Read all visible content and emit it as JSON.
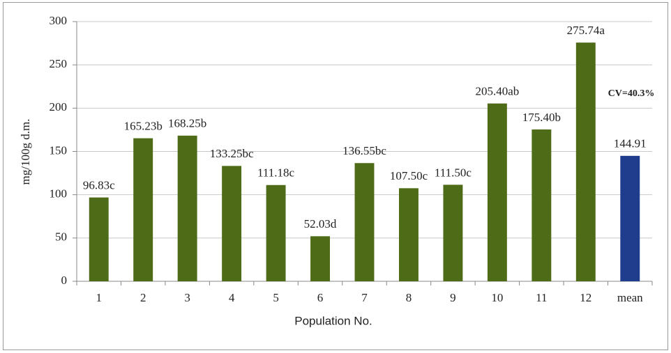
{
  "chart_data": {
    "type": "bar",
    "x_label": "Population No.",
    "y_label": "mg/100g d.m.",
    "annotation": "CV=40.3%",
    "categories": [
      "1",
      "2",
      "3",
      "4",
      "5",
      "6",
      "7",
      "8",
      "9",
      "10",
      "11",
      "12",
      "mean"
    ],
    "values": [
      96.83,
      165.23,
      168.25,
      133.25,
      111.18,
      52.03,
      136.55,
      107.5,
      111.5,
      205.4,
      175.4,
      275.74,
      144.91
    ],
    "value_labels": [
      "96.83c",
      "165.23b",
      "168.25b",
      "133.25bc",
      "111.18c",
      "52.03d",
      "136.55bc",
      "107.50c",
      "111.50c",
      "205.40ab",
      "175.40b",
      "275.74a",
      "144.91"
    ],
    "colors": [
      "#4e6b18",
      "#4e6b18",
      "#4e6b18",
      "#4e6b18",
      "#4e6b18",
      "#4e6b18",
      "#4e6b18",
      "#4e6b18",
      "#4e6b18",
      "#4e6b18",
      "#4e6b18",
      "#4e6b18",
      "#1f3d8c"
    ],
    "ylim": [
      0,
      300
    ],
    "yticks": [
      0,
      50,
      100,
      150,
      200,
      250,
      300
    ],
    "grid": true
  }
}
